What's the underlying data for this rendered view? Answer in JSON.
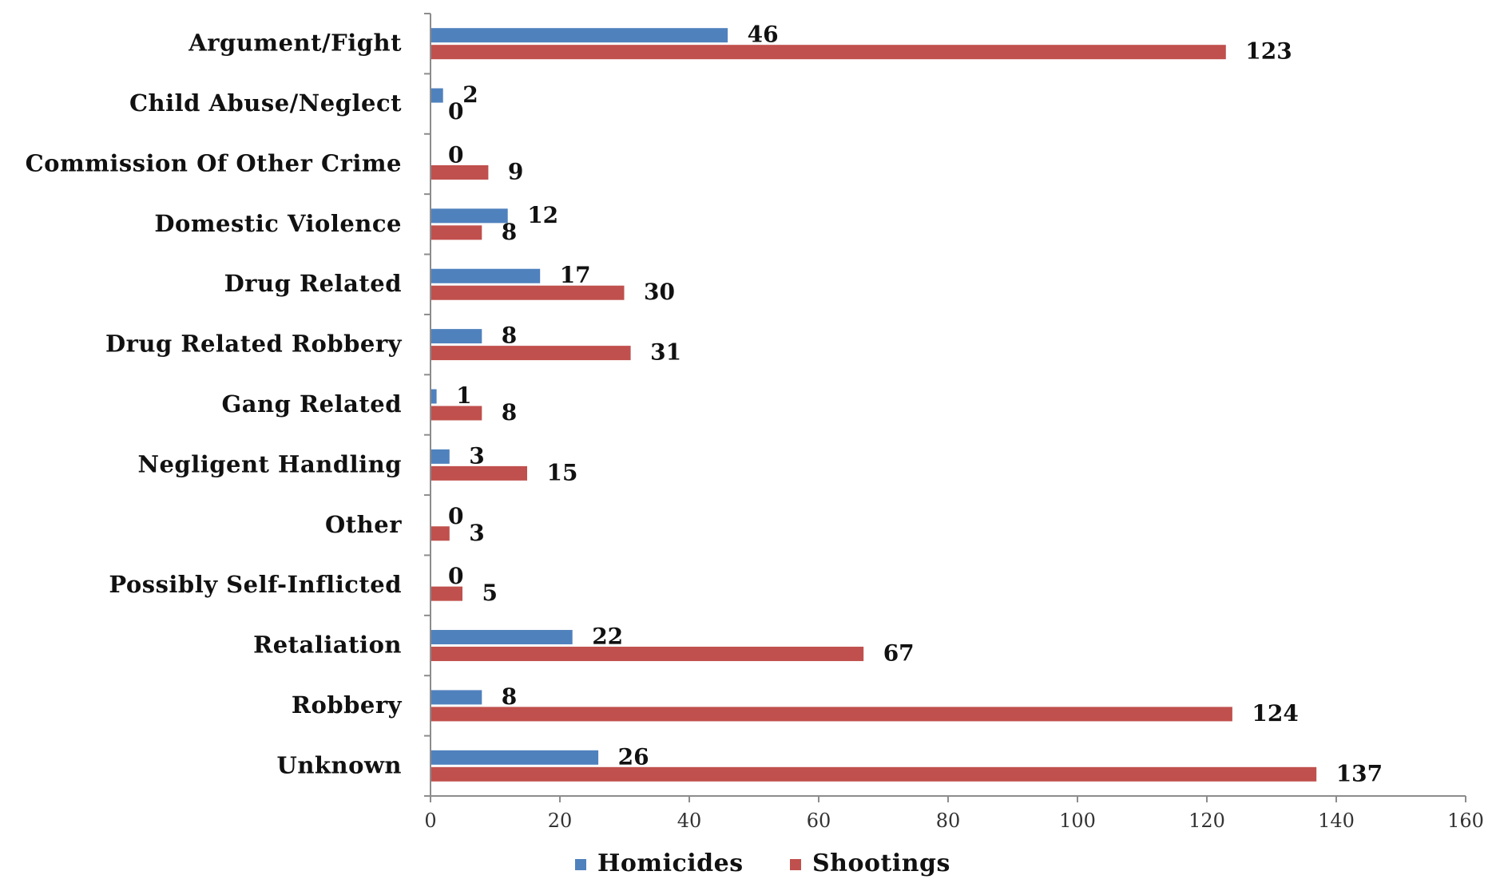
{
  "chart_data": {
    "type": "bar",
    "orientation": "horizontal",
    "categories": [
      "Argument/Fight",
      "Child Abuse/Neglect",
      "Commission Of Other Crime",
      "Domestic Violence",
      "Drug Related",
      "Drug Related Robbery",
      "Gang Related",
      "Negligent Handling",
      "Other",
      "Possibly Self-Inflicted",
      "Retaliation",
      "Robbery",
      "Unknown"
    ],
    "series": [
      {
        "name": "Homicides",
        "color": "#4f81bd",
        "values": [
          46,
          2,
          0,
          12,
          17,
          8,
          1,
          3,
          0,
          0,
          22,
          8,
          26
        ]
      },
      {
        "name": "Shootings",
        "color": "#c0504d",
        "values": [
          123,
          0,
          9,
          8,
          30,
          31,
          8,
          15,
          3,
          5,
          67,
          124,
          137
        ]
      }
    ],
    "xlim": [
      0,
      160
    ],
    "xticks": [
      "0",
      "20",
      "40",
      "60",
      "80",
      "100",
      "120",
      "140",
      "160"
    ],
    "grid": false,
    "legend": "bottom"
  }
}
